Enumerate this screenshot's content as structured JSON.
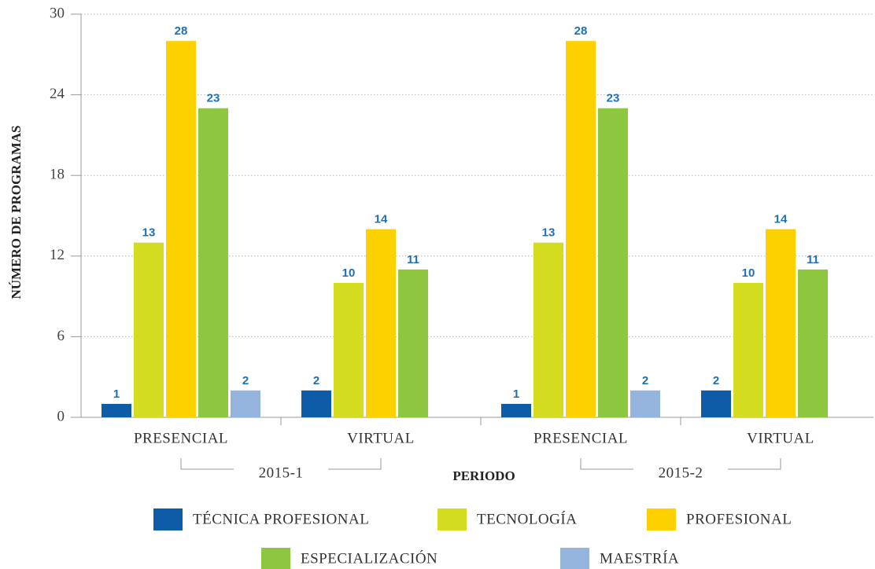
{
  "chart_data": {
    "type": "bar",
    "y_label": "NÚMERO DE PROGRAMAS",
    "x_label": "PERIODO",
    "categories": [
      "PRESENCIAL",
      "VIRTUAL",
      "PRESENCIAL",
      "VIRTUAL"
    ],
    "periods": [
      "2015-1",
      "2015-2"
    ],
    "series": [
      {
        "name": "TÉCNICA PROFESIONAL",
        "color": "#0e5ba8",
        "values": [
          1,
          2,
          1,
          2
        ]
      },
      {
        "name": "TECNOLOGÍA",
        "color": "#d4dc1f",
        "values": [
          13,
          10,
          13,
          10
        ]
      },
      {
        "name": "PROFESIONAL",
        "color": "#fdd000",
        "values": [
          28,
          14,
          28,
          14
        ]
      },
      {
        "name": "ESPECIALIZACIÓN",
        "color": "#8dc63f",
        "values": [
          23,
          11,
          23,
          11
        ]
      },
      {
        "name": "MAESTRÍA",
        "color": "#94b4de",
        "values": [
          2,
          null,
          2,
          null
        ]
      }
    ],
    "ylim": [
      0,
      30
    ],
    "yticks": [
      0,
      6,
      12,
      18,
      24,
      30
    ],
    "grid": true
  }
}
